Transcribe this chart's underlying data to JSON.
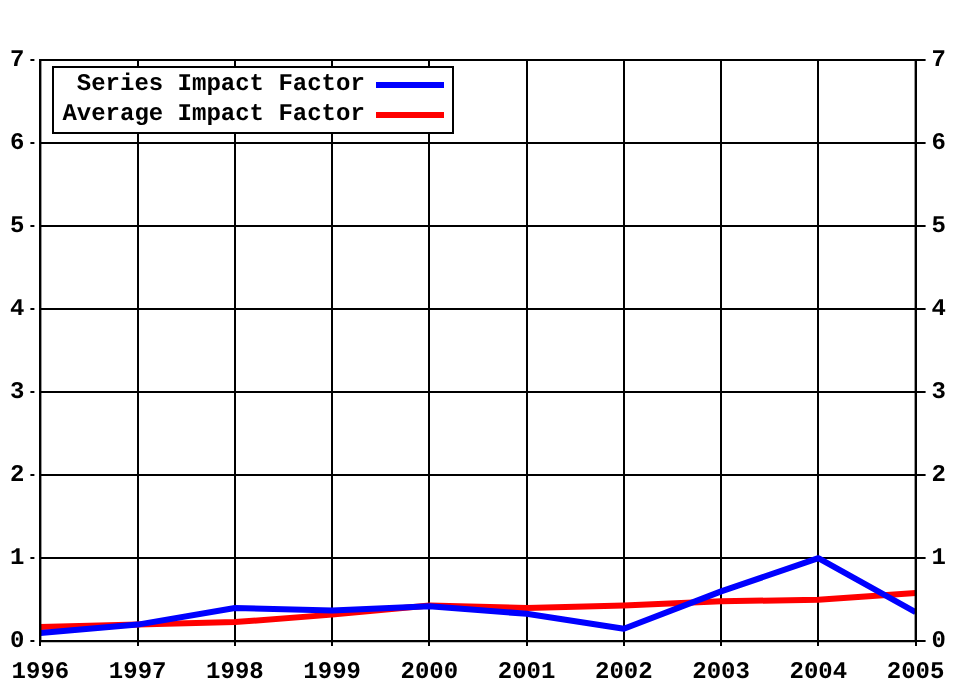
{
  "chart_data": {
    "type": "line",
    "x": [
      1996,
      1997,
      1998,
      1999,
      2000,
      2001,
      2002,
      2003,
      2004,
      2005
    ],
    "series": [
      {
        "name": "Series Impact Factor",
        "color": "#0000ff",
        "values": [
          0.1,
          0.2,
          0.4,
          0.37,
          0.42,
          0.33,
          0.15,
          0.6,
          1.0,
          0.35
        ]
      },
      {
        "name": "Average Impact Factor",
        "color": "#ff0000",
        "values": [
          0.17,
          0.2,
          0.23,
          0.32,
          0.43,
          0.4,
          0.43,
          0.48,
          0.5,
          0.58
        ]
      }
    ],
    "xlim": [
      1996,
      2005
    ],
    "xticks": [
      1996,
      1997,
      1998,
      1999,
      2000,
      2001,
      2002,
      2003,
      2004,
      2005
    ],
    "ylim": [
      0,
      7
    ],
    "yticks": [
      0,
      1,
      2,
      3,
      4,
      5,
      6,
      7
    ],
    "y2lim": [
      0,
      7
    ],
    "y2ticks": [
      0,
      1,
      2,
      3,
      4,
      5,
      6,
      7
    ],
    "grid": true,
    "legend": "top left",
    "marker": "none",
    "line_style": "solid"
  }
}
